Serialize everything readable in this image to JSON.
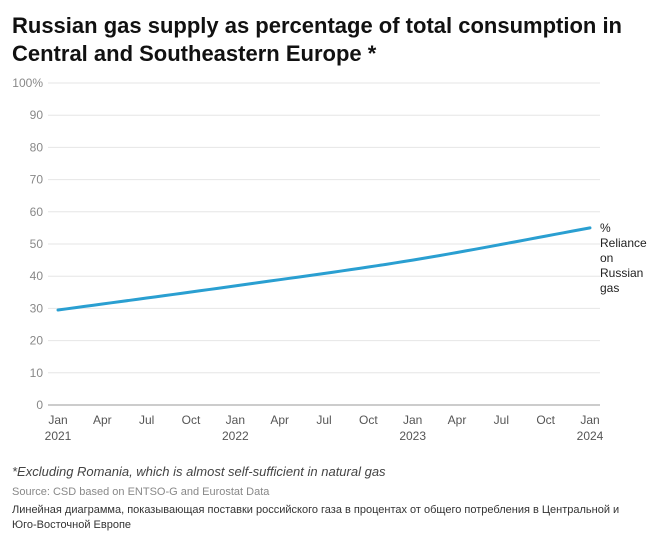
{
  "chart_data": {
    "type": "line",
    "title": "Russian gas supply as percentage of total consumption in Central and Southeastern Europe *",
    "xlabel": "",
    "ylabel": "",
    "ylim": [
      0,
      100
    ],
    "yticks": [
      "0",
      "10",
      "20",
      "30",
      "40",
      "50",
      "60",
      "70",
      "80",
      "90",
      "100%"
    ],
    "xticks": [
      {
        "line1": "Jan",
        "line2": "2021",
        "t": 0
      },
      {
        "line1": "Apr",
        "line2": "",
        "t": 3
      },
      {
        "line1": "Jul",
        "line2": "",
        "t": 6
      },
      {
        "line1": "Oct",
        "line2": "",
        "t": 9
      },
      {
        "line1": "Jan",
        "line2": "2022",
        "t": 12
      },
      {
        "line1": "Apr",
        "line2": "",
        "t": 15
      },
      {
        "line1": "Jul",
        "line2": "",
        "t": 18
      },
      {
        "line1": "Oct",
        "line2": "",
        "t": 21
      },
      {
        "line1": "Jan",
        "line2": "2023",
        "t": 24
      },
      {
        "line1": "Apr",
        "line2": "",
        "t": 27
      },
      {
        "line1": "Jul",
        "line2": "",
        "t": 30
      },
      {
        "line1": "Oct",
        "line2": "",
        "t": 33
      },
      {
        "line1": "Jan",
        "line2": "2024",
        "t": 36
      }
    ],
    "series": [
      {
        "name": "% Reliance on Russian gas",
        "label_lines": [
          "%",
          "Reliance",
          "on",
          "Russian",
          "gas"
        ],
        "color": "#2a9fd1",
        "t": [
          0,
          12,
          24,
          36
        ],
        "values": [
          29.5,
          37,
          45,
          55
        ]
      }
    ],
    "grid": true
  },
  "footnote": "*Excluding Romania, which is almost self-sufficient in natural gas",
  "source": "Source: CSD based on ENTSO-G and Eurostat Data",
  "description": "Линейная диаграмма, показывающая поставки российского газа в процентах от общего потребления в Центральной и Юго-Восточной Европе"
}
